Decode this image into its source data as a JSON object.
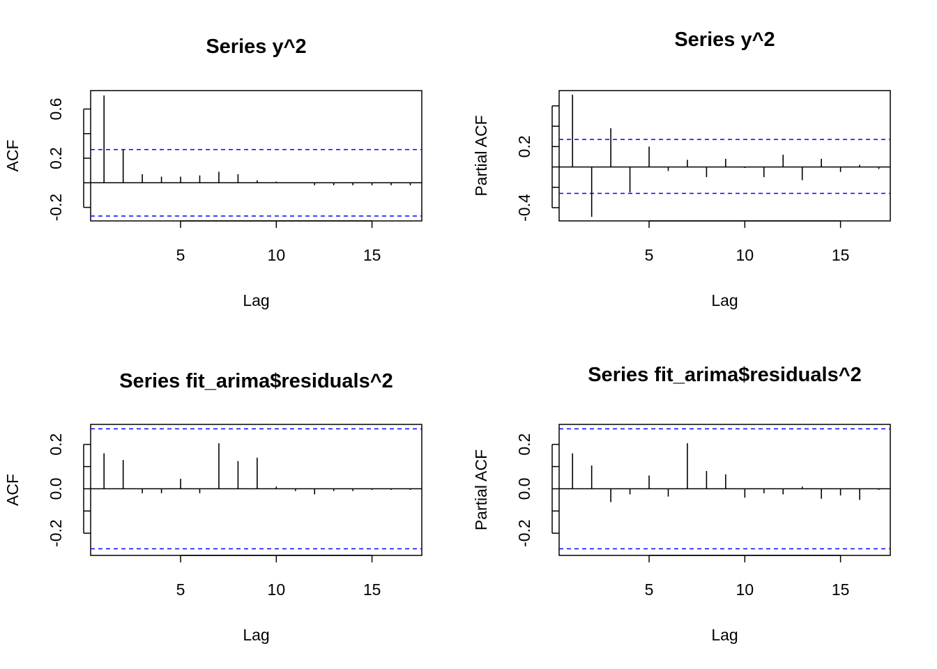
{
  "chart_data": [
    {
      "type": "bar",
      "title": "Series y^2",
      "xlabel": "Lag",
      "ylabel": "ACF",
      "xlim": [
        0.3,
        17.6
      ],
      "ylim": [
        -0.31,
        0.75
      ],
      "x_ticks": [
        5,
        10,
        15
      ],
      "y_ticks": [
        -0.2,
        0.2,
        0.6
      ],
      "y_minor_ticks": [
        0.0,
        0.4
      ],
      "ci": 0.27,
      "ci_lower": -0.27,
      "x": [
        1,
        2,
        3,
        4,
        5,
        6,
        7,
        8,
        9,
        10,
        11,
        12,
        13,
        14,
        15,
        16,
        17
      ],
      "values": [
        0.71,
        0.27,
        0.07,
        0.05,
        0.05,
        0.06,
        0.09,
        0.07,
        0.02,
        0.01,
        0.0,
        -0.02,
        -0.02,
        -0.02,
        -0.02,
        -0.02,
        -0.02
      ],
      "grid": false,
      "ci_color": "#0000ff"
    },
    {
      "type": "bar",
      "title": "Series  y^2",
      "xlabel": "Lag",
      "ylabel": "Partial ACF",
      "xlim": [
        0.3,
        17.6
      ],
      "ylim": [
        -0.53,
        0.75
      ],
      "x_ticks": [
        5,
        10,
        15
      ],
      "y_ticks": [
        -0.4,
        0.2
      ],
      "y_minor_ticks": [
        -0.2,
        0.0,
        0.4,
        0.6
      ],
      "ci": 0.27,
      "ci_lower": -0.26,
      "x": [
        1,
        2,
        3,
        4,
        5,
        6,
        7,
        8,
        9,
        10,
        11,
        12,
        13,
        14,
        15,
        16,
        17
      ],
      "values": [
        0.71,
        -0.49,
        0.38,
        -0.25,
        0.2,
        -0.04,
        0.07,
        -0.1,
        0.08,
        -0.01,
        -0.1,
        0.12,
        -0.13,
        0.08,
        -0.05,
        0.02,
        -0.02
      ],
      "grid": false,
      "ci_color": "#0000ff"
    },
    {
      "type": "bar",
      "title": "Series fit_arima$residuals^2",
      "xlabel": "Lag",
      "ylabel": "ACF",
      "xlim": [
        0.3,
        17.6
      ],
      "ylim": [
        -0.3,
        0.29
      ],
      "x_ticks": [
        5,
        10,
        15
      ],
      "y_ticks": [
        -0.2,
        0.0,
        0.2
      ],
      "y_minor_ticks": [
        -0.1,
        0.1
      ],
      "ci": 0.27,
      "ci_lower": -0.27,
      "x": [
        1,
        2,
        3,
        4,
        5,
        6,
        7,
        8,
        9,
        10,
        11,
        12,
        13,
        14,
        15,
        16,
        17
      ],
      "values": [
        0.16,
        0.13,
        -0.02,
        -0.02,
        0.045,
        -0.02,
        0.205,
        0.125,
        0.14,
        0.01,
        -0.01,
        -0.025,
        -0.01,
        -0.01,
        -0.005,
        -0.005,
        -0.005
      ],
      "grid": false,
      "ci_color": "#0000ff"
    },
    {
      "type": "bar",
      "title": "Series  fit_arima$residuals^2",
      "xlabel": "Lag",
      "ylabel": "Partial ACF",
      "xlim": [
        0.3,
        17.6
      ],
      "ylim": [
        -0.3,
        0.29
      ],
      "x_ticks": [
        5,
        10,
        15
      ],
      "y_ticks": [
        -0.2,
        0.0,
        0.2
      ],
      "y_minor_ticks": [
        -0.1,
        0.1
      ],
      "ci": 0.27,
      "ci_lower": -0.27,
      "x": [
        1,
        2,
        3,
        4,
        5,
        6,
        7,
        8,
        9,
        10,
        11,
        12,
        13,
        14,
        15,
        16,
        17
      ],
      "values": [
        0.16,
        0.105,
        -0.06,
        -0.025,
        0.06,
        -0.035,
        0.205,
        0.08,
        0.065,
        -0.04,
        -0.02,
        -0.025,
        0.01,
        -0.045,
        -0.03,
        -0.05,
        -0.005
      ],
      "grid": false,
      "ci_color": "#0000ff"
    }
  ]
}
